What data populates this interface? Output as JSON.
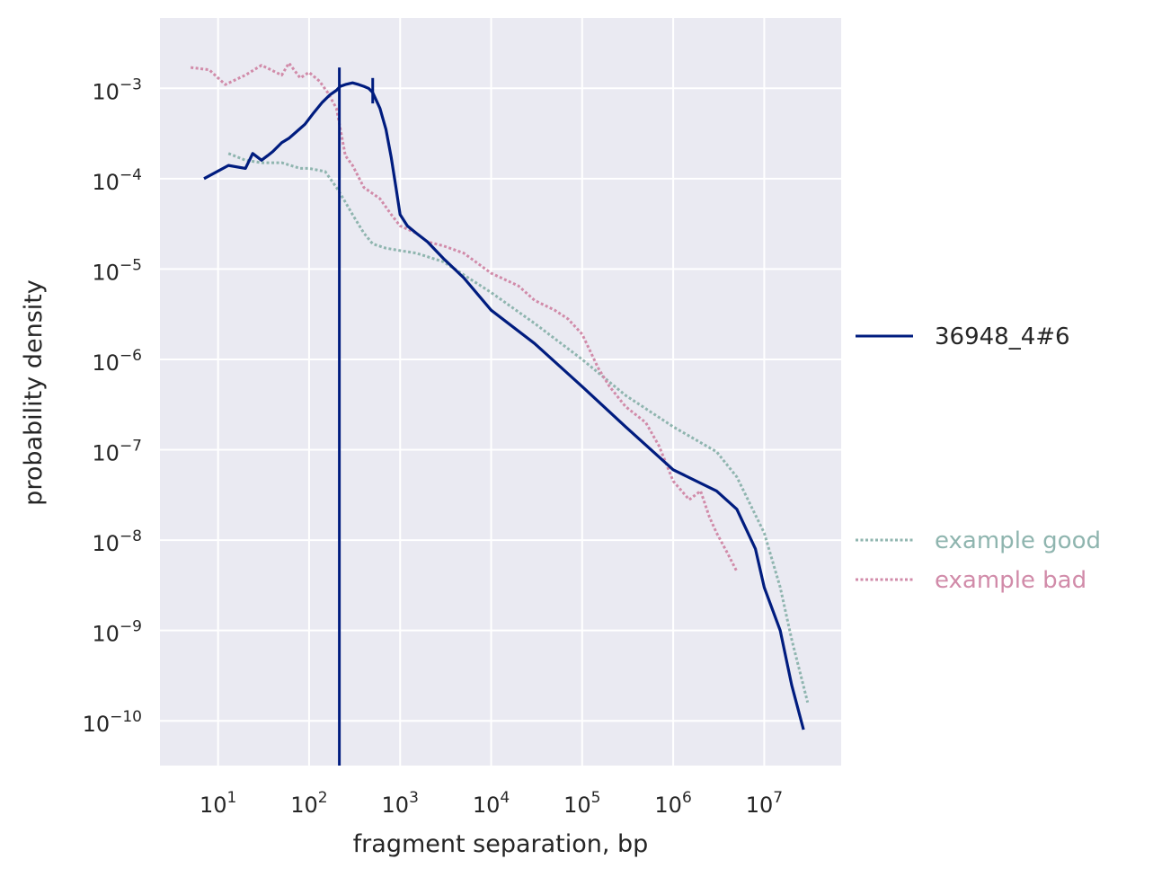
{
  "chart_data": {
    "type": "line",
    "xscale": "log",
    "yscale": "log",
    "xlabel": "fragment separation, bp",
    "ylabel": "probability density",
    "xlim": [
      2.3,
      70000000
    ],
    "ylim": [
      3.2e-11,
      0.006
    ],
    "x_tick_labels": [
      "10^1",
      "10^2",
      "10^3",
      "10^4",
      "10^5",
      "10^6",
      "10^7"
    ],
    "y_tick_labels": [
      "10^-10",
      "10^-9",
      "10^-8",
      "10^-7",
      "10^-6",
      "10^-5",
      "10^-4",
      "10^-3"
    ],
    "grid": true,
    "legend_placement": "right",
    "colors": {
      "background": "#eaeaf2",
      "grid": "#ffffff",
      "sample": "#001c7f",
      "good": "#8fb5af",
      "bad": "#d18ba9"
    },
    "series": [
      {
        "name": "36948_4#6",
        "style": "solid",
        "x": [
          7,
          13,
          20,
          24,
          30,
          35,
          40,
          50,
          60,
          70,
          90,
          110,
          140,
          170,
          200,
          220,
          250,
          300,
          350,
          400,
          450,
          500,
          600,
          700,
          800,
          900,
          1000,
          1200,
          1500,
          2000,
          3000,
          5000,
          10000,
          30000,
          100000,
          300000,
          1000000,
          3000000,
          5000000,
          8000000,
          10000000,
          15000000,
          20000000,
          27000000
        ],
        "y": [
          0.0001,
          0.00014,
          0.00013,
          0.00019,
          0.00016,
          0.00018,
          0.0002,
          0.00025,
          0.00028,
          0.00032,
          0.0004,
          0.00052,
          0.0007,
          0.00085,
          0.00095,
          0.00105,
          0.0011,
          0.00115,
          0.0011,
          0.00105,
          0.001,
          0.0009,
          0.0006,
          0.00035,
          0.00017,
          8e-05,
          4e-05,
          3e-05,
          2.5e-05,
          2e-05,
          1.3e-05,
          8e-06,
          3.5e-06,
          1.5e-06,
          5e-07,
          1.8e-07,
          6e-08,
          3.5e-08,
          2.2e-08,
          8e-09,
          3e-09,
          1e-09,
          2.5e-10,
          8e-11
        ]
      },
      {
        "name": "example good",
        "style": "dotted",
        "x": [
          13,
          20,
          30,
          50,
          80,
          100,
          150,
          200,
          250,
          300,
          400,
          500,
          700,
          1000,
          1500,
          3000,
          10000,
          30000,
          100000,
          300000,
          1000000,
          3000000,
          5000000,
          10000000,
          15000000,
          20000000,
          30000000
        ],
        "y": [
          0.00019,
          0.00016,
          0.00015,
          0.00015,
          0.00013,
          0.00013,
          0.00012,
          8e-05,
          5.5e-05,
          4e-05,
          2.5e-05,
          1.9e-05,
          1.7e-05,
          1.6e-05,
          1.5e-05,
          1.2e-05,
          5.5e-06,
          2.5e-06,
          1e-06,
          4e-07,
          1.8e-07,
          9.5e-08,
          5e-08,
          1.2e-08,
          3e-09,
          8e-10,
          1.6e-10
        ]
      },
      {
        "name": "example bad",
        "style": "dotted",
        "x": [
          5,
          8,
          12,
          20,
          30,
          50,
          60,
          80,
          100,
          130,
          160,
          200,
          250,
          300,
          400,
          600,
          800,
          1000,
          1500,
          2000,
          3000,
          5000,
          10000,
          20000,
          30000,
          50000,
          70000,
          100000,
          150000,
          200000,
          300000,
          500000,
          700000,
          1000000,
          1500000,
          2000000,
          2500000,
          3000000,
          4000000,
          5000000
        ],
        "y": [
          0.0017,
          0.0016,
          0.0011,
          0.0014,
          0.0018,
          0.0014,
          0.0019,
          0.0013,
          0.0015,
          0.0012,
          0.0009,
          0.0006,
          0.00018,
          0.00014,
          8e-05,
          6e-05,
          4e-05,
          3e-05,
          2.5e-05,
          2e-05,
          1.8e-05,
          1.5e-05,
          9e-06,
          6.5e-06,
          4.5e-06,
          3.5e-06,
          2.8e-06,
          1.9e-06,
          8e-07,
          5e-07,
          3e-07,
          2e-07,
          1.1e-07,
          4.5e-08,
          2.8e-08,
          3.5e-08,
          1.8e-08,
          1.2e-08,
          7e-09,
          4.5e-09
        ]
      }
    ]
  }
}
